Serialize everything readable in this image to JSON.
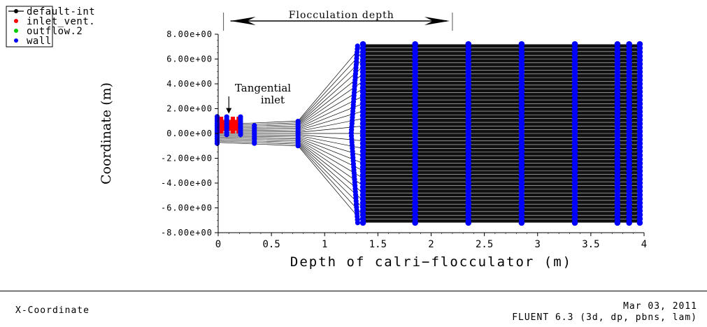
{
  "chart_data": {
    "type": "scatter",
    "title": "",
    "xlabel": "Depth of calri−flocculator (m)",
    "ylabel": "Coordinate (m)",
    "xlim": [
      0,
      4
    ],
    "ylim": [
      -8,
      8
    ],
    "x_ticks": [
      0,
      0.5,
      1,
      1.5,
      2,
      2.5,
      3,
      3.5,
      4
    ],
    "x_tick_labels": [
      "0",
      "0.5",
      "1",
      "1.5",
      "2",
      "2.5",
      "3",
      "3.5",
      "4"
    ],
    "y_ticks": [
      8,
      6,
      4,
      2,
      0,
      -2,
      -4,
      -6,
      -8
    ],
    "y_tick_labels": [
      "8.00e+00",
      "6.00e+00",
      "4.00e+00",
      "2.00e+00",
      "0.00e+00",
      "-2.00e+00",
      "-4.00e+00",
      "-6.00e+00",
      "-8.00e+00"
    ],
    "grid": false,
    "legend_position": "top-left",
    "legend": [
      {
        "name": "default-int",
        "color": "#000000"
      },
      {
        "name": "inlet_vent.",
        "color": "#ff0000"
      },
      {
        "name": "outflow.2",
        "color": "#00cc00"
      },
      {
        "name": "wall",
        "color": "#0000ff"
      }
    ],
    "wall_columns": [
      {
        "x": -0.01,
        "ymin": -0.8,
        "ymax": 1.4
      },
      {
        "x": 0.08,
        "ymin": -0.1,
        "ymax": 1.5
      },
      {
        "x": 0.21,
        "ymin": -0.1,
        "ymax": 1.5
      },
      {
        "x": 0.34,
        "ymin": -0.8,
        "ymax": 0.8
      },
      {
        "x": 0.75,
        "ymin": -1.0,
        "ymax": 1.0
      },
      {
        "x": 1.36,
        "ymin": -7.2,
        "ymax": 7.2
      },
      {
        "x": 1.85,
        "ymin": -7.2,
        "ymax": 7.2
      },
      {
        "x": 2.35,
        "ymin": -7.2,
        "ymax": 7.2
      },
      {
        "x": 2.85,
        "ymin": -7.2,
        "ymax": 7.2
      },
      {
        "x": 3.35,
        "ymin": -7.2,
        "ymax": 7.2
      },
      {
        "x": 3.75,
        "ymin": -7.2,
        "ymax": 7.4
      },
      {
        "x": 3.86,
        "ymin": -7.2,
        "ymax": 7.3
      },
      {
        "x": 3.96,
        "ymin": -7.2,
        "ymax": 7.4
      }
    ],
    "inlet_region": {
      "x": [
        0.0,
        0.22
      ],
      "y": [
        0.2,
        1.1
      ]
    },
    "annotations": [
      {
        "text": "Flocculation depth",
        "x_from": 0.05,
        "x_to": 2.2,
        "y": 9.0
      },
      {
        "text": "Tangential\ninlet",
        "x": 0.2,
        "y": 3.2,
        "arrow_to": [
          0.1,
          1.6
        ]
      }
    ],
    "colors": {
      "mesh": "#000000",
      "wall": "#0000ff",
      "inlet": "#ff0000"
    }
  },
  "footer": {
    "left_label": "X-Coordinate",
    "date": "Mar 03, 2011",
    "software": "FLUENT 6.3 (3d, dp, pbns, lam)"
  }
}
